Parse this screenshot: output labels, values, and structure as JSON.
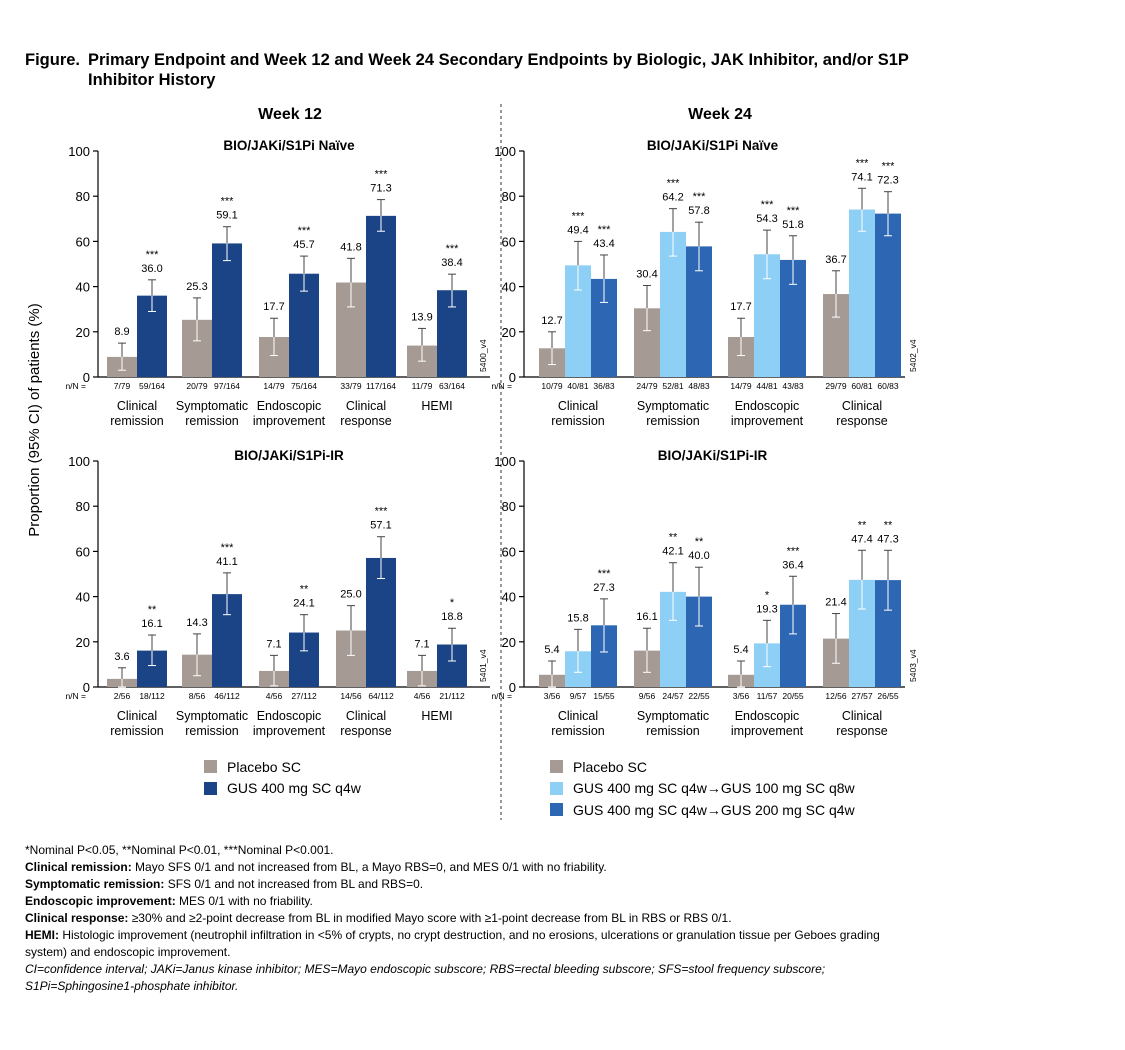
{
  "figure": {
    "label": "Figure.",
    "title": "Primary Endpoint and Week 12 and Week 24 Secondary Endpoints by Biologic, JAK Inhibitor, and/or S1P Inhibitor History"
  },
  "colors": {
    "placebo": "#a59a94",
    "gus_400": "#1b4486",
    "gus_100": "#8ecff5",
    "gus_200": "#2d67b4",
    "axis": "#000000",
    "divider": "#555555"
  },
  "y_axis_title": "Proportion (95% CI) of patients (%)",
  "columns": [
    {
      "heading": "Week 12"
    },
    {
      "heading": "Week 24"
    }
  ],
  "chart_data": [
    {
      "type": "bar",
      "title": "BIO/JAKi/S1Pi Naïve",
      "week": "Week 12",
      "code": "5400_v4",
      "nN_label": "n/N =",
      "ylim": [
        0,
        100
      ],
      "yticks": [
        "0",
        "20",
        "40",
        "60",
        "80",
        "100"
      ],
      "categories": [
        [
          "Clinical",
          "remission"
        ],
        [
          "Symptomatic",
          "remission"
        ],
        [
          "Endoscopic",
          "improvement"
        ],
        [
          "Clinical",
          "response"
        ],
        [
          "HEMI"
        ]
      ],
      "series": [
        {
          "name": "Placebo SC",
          "color": "#a59a94",
          "values": [
            8.9,
            25.3,
            17.7,
            41.8,
            13.9
          ],
          "ci_low": [
            3.0,
            16.0,
            9.5,
            31.0,
            7.0
          ],
          "ci_high": [
            15.0,
            35.0,
            26.0,
            52.5,
            21.5
          ],
          "labels": [
            "8.9",
            "25.3",
            "17.7",
            "41.8",
            "13.9"
          ],
          "sig": [
            "",
            "",
            "",
            "",
            ""
          ],
          "nN": [
            "7/79",
            "20/79",
            "14/79",
            "33/79",
            "11/79"
          ]
        },
        {
          "name": "GUS 400 mg SC q4w",
          "color": "#1b4486",
          "values": [
            36.0,
            59.1,
            45.7,
            71.3,
            38.4
          ],
          "ci_low": [
            29.0,
            51.5,
            38.0,
            64.5,
            31.0
          ],
          "ci_high": [
            43.0,
            66.5,
            53.5,
            78.5,
            45.5
          ],
          "labels": [
            "36.0",
            "59.1",
            "45.7",
            "71.3",
            "38.4"
          ],
          "sig": [
            "***",
            "***",
            "***",
            "***",
            "***"
          ],
          "nN": [
            "59/164",
            "97/164",
            "75/164",
            "117/164",
            "63/164"
          ]
        }
      ]
    },
    {
      "type": "bar",
      "title": "BIO/JAKi/S1Pi Naïve",
      "week": "Week 24",
      "code": "5402_v4",
      "nN_label": "n/N =",
      "ylim": [
        0,
        100
      ],
      "yticks": [
        "0",
        "20",
        "40",
        "60",
        "80",
        "100"
      ],
      "categories": [
        [
          "Clinical",
          "remission"
        ],
        [
          "Symptomatic",
          "remission"
        ],
        [
          "Endoscopic",
          "improvement"
        ],
        [
          "Clinical",
          "response"
        ]
      ],
      "series": [
        {
          "name": "Placebo SC",
          "color": "#a59a94",
          "values": [
            12.7,
            30.4,
            17.7,
            36.7
          ],
          "ci_low": [
            5.5,
            20.5,
            9.5,
            26.5
          ],
          "ci_high": [
            20.0,
            40.5,
            26.0,
            47.0
          ],
          "labels": [
            "12.7",
            "30.4",
            "17.7",
            "36.7"
          ],
          "sig": [
            "",
            "",
            "",
            ""
          ],
          "nN": [
            "10/79",
            "24/79",
            "14/79",
            "29/79"
          ]
        },
        {
          "name": "GUS 400 mg SC q4w→GUS 100 mg SC q8w",
          "color": "#8ecff5",
          "values": [
            49.4,
            64.2,
            54.3,
            74.1
          ],
          "ci_low": [
            38.5,
            53.5,
            43.5,
            64.5
          ],
          "ci_high": [
            60.0,
            74.5,
            65.0,
            83.5
          ],
          "labels": [
            "49.4",
            "64.2",
            "54.3",
            "74.1"
          ],
          "sig": [
            "***",
            "***",
            "***",
            "***"
          ],
          "nN": [
            "40/81",
            "52/81",
            "44/81",
            "60/81"
          ]
        },
        {
          "name": "GUS 400 mg SC q4w→GUS 200 mg SC q4w",
          "color": "#2d67b4",
          "values": [
            43.4,
            57.8,
            51.8,
            72.3
          ],
          "ci_low": [
            33.0,
            47.0,
            41.0,
            62.5
          ],
          "ci_high": [
            54.0,
            68.5,
            62.5,
            82.0
          ],
          "labels": [
            "43.4",
            "57.8",
            "51.8",
            "72.3"
          ],
          "sig": [
            "***",
            "***",
            "***",
            "***"
          ],
          "nN": [
            "36/83",
            "48/83",
            "43/83",
            "60/83"
          ]
        }
      ]
    },
    {
      "type": "bar",
      "title": "BIO/JAKi/S1Pi-IR",
      "week": "Week 12",
      "code": "5401_v4",
      "nN_label": "n/N =",
      "ylim": [
        0,
        100
      ],
      "yticks": [
        "0",
        "20",
        "40",
        "60",
        "80",
        "100"
      ],
      "categories": [
        [
          "Clinical",
          "remission"
        ],
        [
          "Symptomatic",
          "remission"
        ],
        [
          "Endoscopic",
          "improvement"
        ],
        [
          "Clinical",
          "response"
        ],
        [
          "HEMI"
        ]
      ],
      "series": [
        {
          "name": "Placebo SC",
          "color": "#a59a94",
          "values": [
            3.6,
            14.3,
            7.1,
            25.0,
            7.1
          ],
          "ci_low": [
            0.0,
            5.0,
            0.5,
            14.0,
            0.5
          ],
          "ci_high": [
            8.5,
            23.5,
            14.0,
            36.0,
            14.0
          ],
          "labels": [
            "3.6",
            "14.3",
            "7.1",
            "25.0",
            "7.1"
          ],
          "sig": [
            "",
            "",
            "",
            "",
            ""
          ],
          "nN": [
            "2/56",
            "8/56",
            "4/56",
            "14/56",
            "4/56"
          ]
        },
        {
          "name": "GUS 400 mg SC q4w",
          "color": "#1b4486",
          "values": [
            16.1,
            41.1,
            24.1,
            57.1,
            18.8
          ],
          "ci_low": [
            9.5,
            32.0,
            16.0,
            48.0,
            11.5
          ],
          "ci_high": [
            23.0,
            50.5,
            32.0,
            66.5,
            26.0
          ],
          "labels": [
            "16.1",
            "41.1",
            "24.1",
            "57.1",
            "18.8"
          ],
          "sig": [
            "**",
            "***",
            "**",
            "***",
            "*"
          ],
          "nN": [
            "18/112",
            "46/112",
            "27/112",
            "64/112",
            "21/112"
          ]
        }
      ]
    },
    {
      "type": "bar",
      "title": "BIO/JAKi/S1Pi-IR",
      "week": "Week 24",
      "code": "5403_v4",
      "nN_label": "n/N =",
      "ylim": [
        0,
        100
      ],
      "yticks": [
        "0",
        "20",
        "40",
        "60",
        "80",
        "100"
      ],
      "categories": [
        [
          "Clinical",
          "remission"
        ],
        [
          "Symptomatic",
          "remission"
        ],
        [
          "Endoscopic",
          "improvement"
        ],
        [
          "Clinical",
          "response"
        ]
      ],
      "series": [
        {
          "name": "Placebo SC",
          "color": "#a59a94",
          "values": [
            5.4,
            16.1,
            5.4,
            21.4
          ],
          "ci_low": [
            0.0,
            6.5,
            0.0,
            10.5
          ],
          "ci_high": [
            11.5,
            26.0,
            11.5,
            32.5
          ],
          "labels": [
            "5.4",
            "16.1",
            "5.4",
            "21.4"
          ],
          "sig": [
            "",
            "",
            "",
            ""
          ],
          "nN": [
            "3/56",
            "9/56",
            "3/56",
            "12/56"
          ]
        },
        {
          "name": "GUS 400 mg SC q4w→GUS 100 mg SC q8w",
          "color": "#8ecff5",
          "values": [
            15.8,
            42.1,
            19.3,
            47.4
          ],
          "ci_low": [
            6.5,
            29.5,
            9.0,
            34.5
          ],
          "ci_high": [
            25.5,
            55.0,
            29.5,
            60.5
          ],
          "labels": [
            "15.8",
            "42.1",
            "19.3",
            "47.4"
          ],
          "sig": [
            "",
            "**",
            "*",
            "**"
          ],
          "nN": [
            "9/57",
            "24/57",
            "11/57",
            "27/57"
          ]
        },
        {
          "name": "GUS 400 mg SC q4w→GUS 200 mg SC q4w",
          "color": "#2d67b4",
          "values": [
            27.3,
            40.0,
            36.4,
            47.3
          ],
          "ci_low": [
            15.5,
            27.0,
            23.5,
            34.0
          ],
          "ci_high": [
            39.0,
            53.0,
            49.0,
            60.5
          ],
          "labels": [
            "27.3",
            "40.0",
            "36.4",
            "47.3"
          ],
          "sig": [
            "***",
            "**",
            "***",
            "**"
          ],
          "nN": [
            "15/55",
            "22/55",
            "20/55",
            "26/55"
          ]
        }
      ]
    }
  ],
  "legends": [
    {
      "items": [
        {
          "label": "Placebo SC",
          "color": "#a59a94"
        },
        {
          "label": "GUS 400 mg SC q4w",
          "color": "#1b4486"
        }
      ]
    },
    {
      "items": [
        {
          "label": "Placebo SC",
          "color": "#a59a94"
        },
        {
          "label": "GUS 400 mg SC q4w→GUS 100 mg SC q8w",
          "color": "#8ecff5"
        },
        {
          "label": "GUS 400 mg SC q4w→GUS 200 mg SC q4w",
          "color": "#2d67b4"
        }
      ]
    }
  ],
  "footnotes": {
    "significance": "*Nominal P<0.05, **Nominal P<0.01, ***Nominal P<0.001.",
    "definitions": [
      {
        "term": "Clinical remission:",
        "text": " Mayo SFS 0/1 and not increased from BL, a Mayo RBS=0, and MES 0/1 with no friability."
      },
      {
        "term": "Symptomatic remission:",
        "text": " SFS 0/1 and not increased from BL and RBS=0."
      },
      {
        "term": "Endoscopic improvement:",
        "text": " MES 0/1 with no friability."
      },
      {
        "term": "Clinical response:",
        "text": " ≥30% and ≥2-point decrease from BL in modified Mayo score with ≥1-point decrease from BL in RBS or RBS 0/1."
      },
      {
        "term": "HEMI:",
        "text": " Histologic improvement (neutrophil infiltration in <5% of crypts, no crypt destruction, and no erosions, ulcerations or granulation tissue per Geboes grading system) and endoscopic improvement."
      }
    ],
    "abbreviations": "CI=confidence interval; JAKi=Janus kinase inhibitor; MES=Mayo endoscopic subscore; RBS=rectal bleeding subscore; SFS=stool frequency subscore; S1Pi=Sphingosine1-phosphate inhibitor."
  }
}
